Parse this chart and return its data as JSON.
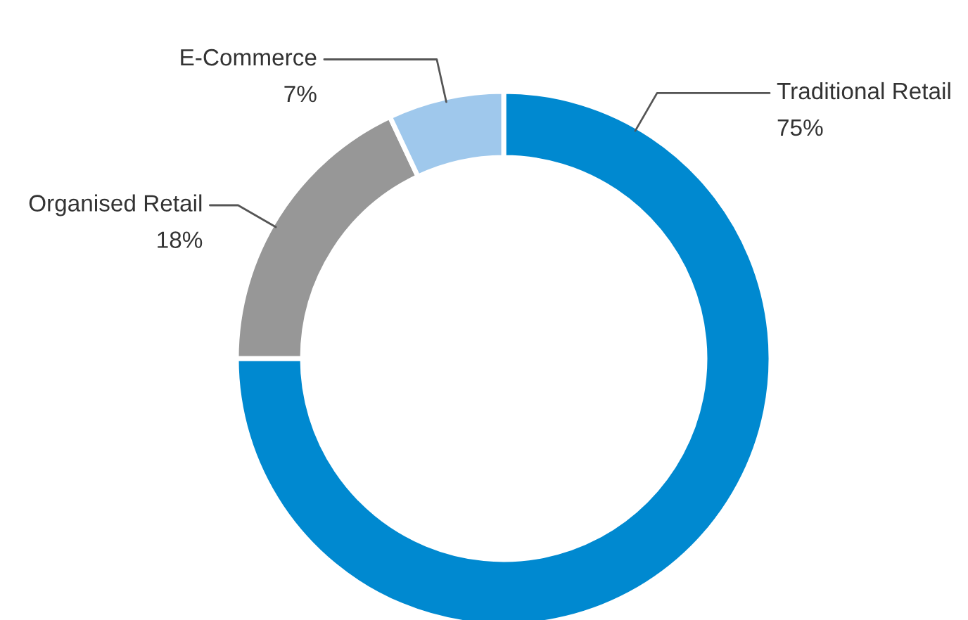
{
  "chart_data": {
    "type": "donut",
    "categories": [
      "Traditional Retail",
      "Organised Retail",
      "E-Commerce"
    ],
    "values": [
      75,
      18,
      7
    ],
    "colors": [
      "#0089d0",
      "#979797",
      "#9fc8ec"
    ],
    "value_labels": [
      "75%",
      "18%",
      "7%"
    ],
    "legend": false
  }
}
